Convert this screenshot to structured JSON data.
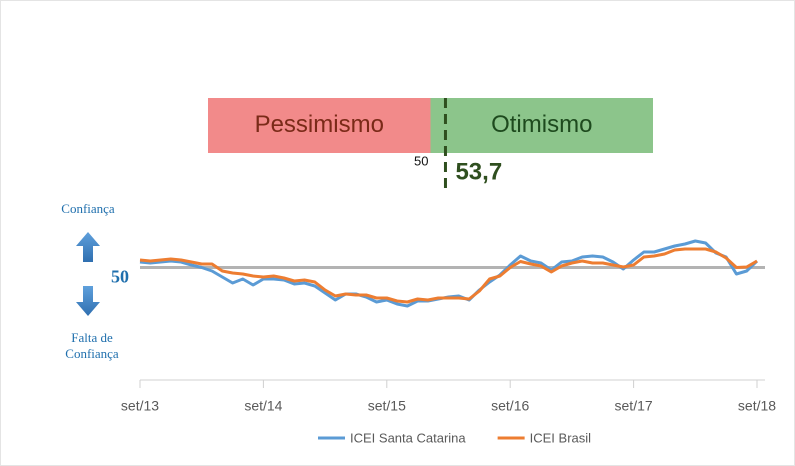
{
  "gauge": {
    "labels": [
      "Pessimismo",
      "Otimismo"
    ],
    "colors": [
      "#f28a8a",
      "#8cc58b"
    ],
    "text_colors": [
      "#7a2a18",
      "#1e4a1e"
    ],
    "xlim": [
      -5,
      105
    ],
    "threshold": 50,
    "threshold_label": "50",
    "value": 53.7,
    "value_label": "53,7",
    "value_color": "#2f4f1f"
  },
  "chart_data": {
    "type": "line",
    "categories": [
      "set/13",
      null,
      null,
      null,
      null,
      null,
      null,
      null,
      null,
      null,
      null,
      null,
      "set/14",
      null,
      null,
      null,
      null,
      null,
      null,
      null,
      null,
      null,
      null,
      null,
      "set/15",
      null,
      null,
      null,
      null,
      null,
      null,
      null,
      null,
      null,
      null,
      null,
      "set/16",
      null,
      null,
      null,
      null,
      null,
      null,
      null,
      null,
      null,
      null,
      null,
      "set/17",
      null,
      null,
      null,
      null,
      null,
      null,
      null,
      null,
      null,
      null,
      null,
      "set/18"
    ],
    "series": [
      {
        "name": "ICEI Santa Catarina",
        "color": "#5b9bd5",
        "values": [
          52.2,
          51.8,
          52.2,
          52.6,
          52.2,
          51,
          50,
          48.6,
          46.2,
          43.8,
          45.4,
          43,
          45.4,
          45.4,
          45,
          43.4,
          43.8,
          42.6,
          39.8,
          37,
          39.4,
          39.4,
          38.2,
          36.2,
          37,
          35.4,
          34.6,
          36.6,
          36.6,
          37.4,
          38.2,
          38.6,
          37,
          41,
          44.2,
          47,
          51,
          54.6,
          52.6,
          51.8,
          49,
          52.2,
          52.6,
          54.2,
          54.6,
          54.2,
          52.2,
          49.4,
          53,
          56.2,
          56.2,
          57.4,
          58.6,
          59.4,
          60.6,
          59.8,
          55.8,
          54.2,
          47.4,
          48.6,
          52.6
        ]
      },
      {
        "name": "ICEI Brasil",
        "color": "#ed7d31",
        "values": [
          53,
          52.6,
          53,
          53.4,
          53,
          52.2,
          51.4,
          51.4,
          48.6,
          47.8,
          47.4,
          46.6,
          46.2,
          46.6,
          45.8,
          44.6,
          45,
          44.2,
          41,
          38.6,
          39.4,
          39,
          39,
          37.8,
          37.8,
          36.6,
          36.2,
          37.4,
          37,
          37.8,
          37.8,
          37.8,
          37.4,
          40.6,
          45.4,
          46.6,
          50,
          52.4,
          51.4,
          50.6,
          48.2,
          50.6,
          51.8,
          52.6,
          51.8,
          51.8,
          51,
          50.2,
          51,
          54.2,
          54.6,
          55.4,
          57,
          57.4,
          57.4,
          57.4,
          56.2,
          53.8,
          50,
          50.2,
          52.6
        ]
      }
    ],
    "ylim": [
      5,
      70
    ],
    "yticks": [
      50
    ],
    "reference_line_color": "#b3b3b3",
    "annotations": [
      "Confiança",
      "Falta de",
      "Confiança"
    ],
    "annotation_color": "#1f6fad",
    "legend": "bottom"
  }
}
